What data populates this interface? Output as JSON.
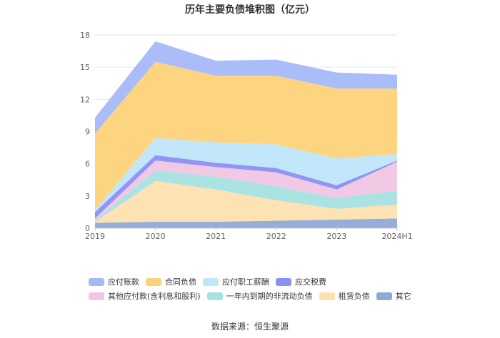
{
  "chart_data": {
    "type": "area",
    "stacked": true,
    "title": "历年主要负债堆积图（亿元）",
    "categories": [
      "2019",
      "2020",
      "2021",
      "2022",
      "2023",
      "2024H1"
    ],
    "ylim": [
      0,
      18
    ],
    "yticks": [
      0,
      3,
      6,
      9,
      12,
      15,
      18
    ],
    "grid": true,
    "legend_position": "bottom",
    "series": [
      {
        "name": "其它",
        "color": "#8fa9d6",
        "values": [
          0.5,
          0.6,
          0.6,
          0.7,
          0.8,
          0.9
        ]
      },
      {
        "name": "租赁负债",
        "color": "#fde0b0",
        "values": [
          0.1,
          3.8,
          3.0,
          1.9,
          1.0,
          1.3
        ]
      },
      {
        "name": "一年内到期的非流动负债",
        "color": "#a6e2e0",
        "values": [
          0.1,
          1.0,
          1.2,
          1.3,
          1.0,
          1.3
        ]
      },
      {
        "name": "其他应付款(含利息和股利)",
        "color": "#f0c6e3",
        "values": [
          0.2,
          0.9,
          0.9,
          1.3,
          0.8,
          2.7
        ]
      },
      {
        "name": "应交税费",
        "color": "#8c8ff5",
        "values": [
          0.6,
          0.5,
          0.4,
          0.4,
          0.4,
          0.1
        ]
      },
      {
        "name": "应付职工薪酬",
        "color": "#bfe6fb",
        "values": [
          0.2,
          1.6,
          1.9,
          2.2,
          2.5,
          0.6
        ]
      },
      {
        "name": "合同负债",
        "color": "#fdd37a",
        "values": [
          7.1,
          7.1,
          6.2,
          6.4,
          6.5,
          6.1
        ]
      },
      {
        "name": "应付账款",
        "color": "#a5b9f9",
        "values": [
          1.5,
          1.9,
          1.4,
          1.5,
          1.5,
          1.3
        ]
      }
    ],
    "legend_order": [
      "应付账款",
      "合同负债",
      "应付职工薪酬",
      "应交税费",
      "其他应付款(含利息和股利)",
      "一年内到期的非流动负债",
      "租赁负债",
      "其它"
    ]
  },
  "source_text": "数据来源：恒生聚源"
}
